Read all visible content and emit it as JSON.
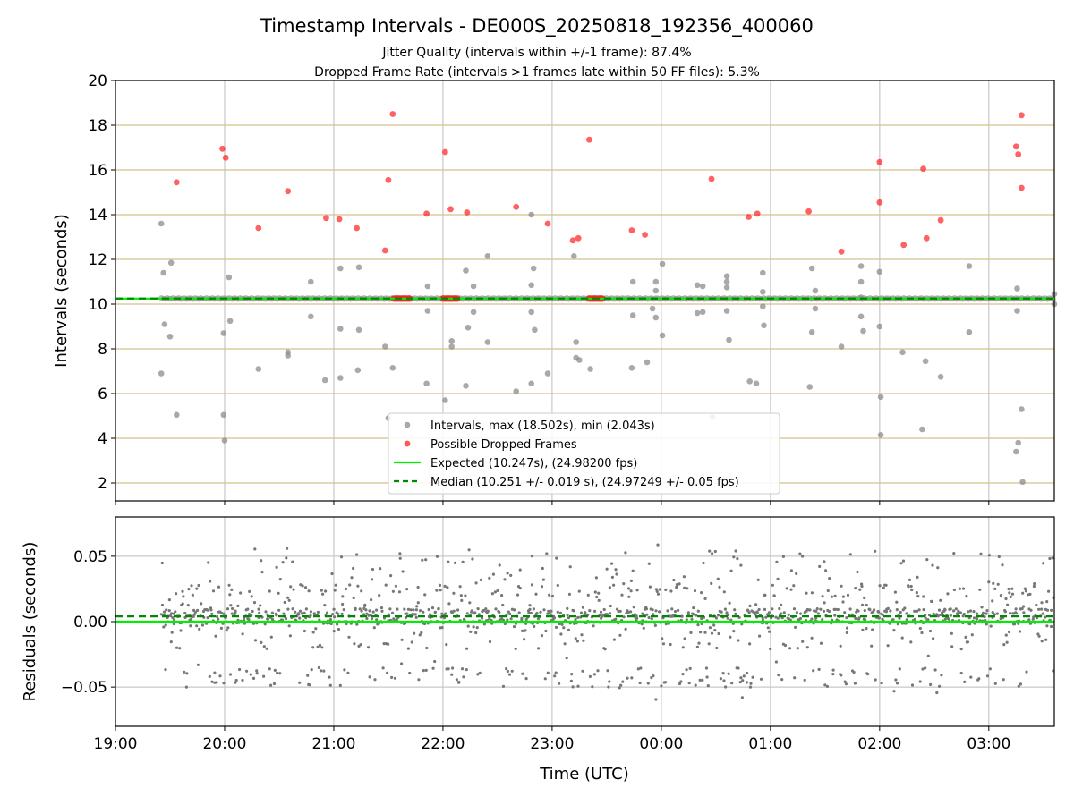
{
  "chart_data": [
    {
      "type": "scatter",
      "title": "Timestamp Intervals - DE000S_20250818_192356_400060",
      "subtitle_1": "Jitter Quality (intervals within +/-1 frame): 87.4%",
      "subtitle_2": "Dropped Frame Rate (intervals >1 frames late within 50 FF files): 5.3%",
      "ylabel": "Intervals (seconds)",
      "xlabel": "",
      "ylim": [
        1.2,
        20
      ],
      "yticks": [
        2,
        4,
        6,
        8,
        10,
        12,
        14,
        16,
        18,
        20
      ],
      "ytick_labels": [
        "2",
        "4",
        "6",
        "8",
        "10",
        "12",
        "14",
        "16",
        "18",
        "20"
      ],
      "xlim_hours": [
        19.0,
        27.6
      ],
      "grid": "vertical grey at each hour, horizontal tan at each y tick",
      "legend_position": "lower-center",
      "series": [
        {
          "name": "Intervals, max (18.502s), min (2.043s)",
          "color": "#8c8c8c",
          "points": [
            [
              19.42,
              13.6
            ],
            [
              19.42,
              6.9
            ],
            [
              19.44,
              11.4
            ],
            [
              19.45,
              9.1
            ],
            [
              19.5,
              8.55
            ],
            [
              19.51,
              11.85
            ],
            [
              19.56,
              5.05
            ],
            [
              19.99,
              8.7
            ],
            [
              19.99,
              5.05
            ],
            [
              20.0,
              3.9
            ],
            [
              20.04,
              11.2
            ],
            [
              20.05,
              9.25
            ],
            [
              20.31,
              7.1
            ],
            [
              20.58,
              7.85
            ],
            [
              20.58,
              7.7
            ],
            [
              20.79,
              11.0
            ],
            [
              20.79,
              9.45
            ],
            [
              20.92,
              6.6
            ],
            [
              21.06,
              11.6
            ],
            [
              21.06,
              8.9
            ],
            [
              21.06,
              6.7
            ],
            [
              21.23,
              11.65
            ],
            [
              21.23,
              8.85
            ],
            [
              21.22,
              7.05
            ],
            [
              21.47,
              8.1
            ],
            [
              21.5,
              4.9
            ],
            [
              21.54,
              7.15
            ],
            [
              21.86,
              10.8
            ],
            [
              21.86,
              9.7
            ],
            [
              21.85,
              6.45
            ],
            [
              22.02,
              5.7
            ],
            [
              22.08,
              8.35
            ],
            [
              22.08,
              8.1
            ],
            [
              22.21,
              11.5
            ],
            [
              22.23,
              8.95
            ],
            [
              22.21,
              6.35
            ],
            [
              22.28,
              10.8
            ],
            [
              22.28,
              9.65
            ],
            [
              22.41,
              12.15
            ],
            [
              22.41,
              8.3
            ],
            [
              22.67,
              6.1
            ],
            [
              22.81,
              14.0
            ],
            [
              22.81,
              10.85
            ],
            [
              22.81,
              9.65
            ],
            [
              22.81,
              6.45
            ],
            [
              22.83,
              11.6
            ],
            [
              22.84,
              8.85
            ],
            [
              22.96,
              6.9
            ],
            [
              23.2,
              12.15
            ],
            [
              23.22,
              8.3
            ],
            [
              23.22,
              7.6
            ],
            [
              23.25,
              7.5
            ],
            [
              23.35,
              7.1
            ],
            [
              23.74,
              11.0
            ],
            [
              23.74,
              9.5
            ],
            [
              23.73,
              7.15
            ],
            [
              23.87,
              7.4
            ],
            [
              23.92,
              9.8
            ],
            [
              23.95,
              11.0
            ],
            [
              23.95,
              10.6
            ],
            [
              23.95,
              9.4
            ],
            [
              24.01,
              11.8
            ],
            [
              24.01,
              8.6
            ],
            [
              24.33,
              10.85
            ],
            [
              24.33,
              9.6
            ],
            [
              24.38,
              10.8
            ],
            [
              24.38,
              9.65
            ],
            [
              24.47,
              4.95
            ],
            [
              24.6,
              11.25
            ],
            [
              24.6,
              11.0
            ],
            [
              24.6,
              10.75
            ],
            [
              24.6,
              9.7
            ],
            [
              24.62,
              8.4
            ],
            [
              24.81,
              6.55
            ],
            [
              24.87,
              6.45
            ],
            [
              24.93,
              11.4
            ],
            [
              24.93,
              10.55
            ],
            [
              24.93,
              9.9
            ],
            [
              24.94,
              9.05
            ],
            [
              25.36,
              6.3
            ],
            [
              25.38,
              11.6
            ],
            [
              25.41,
              10.6
            ],
            [
              25.41,
              9.8
            ],
            [
              25.38,
              8.75
            ],
            [
              25.65,
              8.1
            ],
            [
              25.83,
              11.7
            ],
            [
              25.83,
              11.0
            ],
            [
              25.83,
              10.3
            ],
            [
              25.83,
              9.45
            ],
            [
              25.85,
              8.8
            ],
            [
              26.0,
              11.45
            ],
            [
              26.0,
              9.0
            ],
            [
              26.01,
              5.85
            ],
            [
              26.01,
              4.15
            ],
            [
              26.21,
              7.85
            ],
            [
              26.39,
              4.4
            ],
            [
              26.42,
              7.45
            ],
            [
              26.56,
              6.75
            ],
            [
              26.82,
              11.7
            ],
            [
              26.82,
              8.75
            ],
            [
              27.26,
              10.7
            ],
            [
              27.26,
              9.7
            ],
            [
              27.27,
              3.8
            ],
            [
              27.25,
              3.4
            ],
            [
              27.3,
              5.3
            ],
            [
              27.31,
              2.05
            ],
            [
              27.6,
              10.45
            ],
            [
              27.6,
              10.0
            ]
          ]
        },
        {
          "name": "Possible Dropped Frames",
          "color": "#ff2020",
          "points": [
            [
              19.56,
              15.45
            ],
            [
              19.98,
              16.95
            ],
            [
              20.01,
              16.55
            ],
            [
              20.31,
              13.4
            ],
            [
              20.58,
              15.05
            ],
            [
              20.93,
              13.85
            ],
            [
              21.05,
              13.8
            ],
            [
              21.21,
              13.4
            ],
            [
              21.47,
              12.4
            ],
            [
              21.5,
              15.55
            ],
            [
              21.54,
              18.5
            ],
            [
              21.85,
              14.05
            ],
            [
              22.02,
              16.8
            ],
            [
              22.07,
              14.25
            ],
            [
              22.22,
              14.1
            ],
            [
              22.67,
              14.35
            ],
            [
              22.96,
              13.6
            ],
            [
              23.19,
              12.85
            ],
            [
              23.24,
              12.95
            ],
            [
              23.34,
              17.35
            ],
            [
              23.73,
              13.3
            ],
            [
              23.85,
              13.1
            ],
            [
              24.46,
              15.6
            ],
            [
              24.8,
              13.9
            ],
            [
              24.88,
              14.05
            ],
            [
              25.35,
              14.15
            ],
            [
              25.65,
              12.35
            ],
            [
              26.0,
              16.35
            ],
            [
              26.0,
              14.55
            ],
            [
              26.22,
              12.65
            ],
            [
              26.4,
              16.05
            ],
            [
              26.43,
              12.95
            ],
            [
              26.56,
              13.75
            ],
            [
              27.25,
              17.05
            ],
            [
              27.27,
              16.7
            ],
            [
              27.3,
              18.45
            ],
            [
              27.3,
              15.2
            ]
          ],
          "clusters_at_10_25": [
            [
              21.55,
              21.7
            ],
            [
              22.0,
              22.14
            ],
            [
              23.34,
              23.47
            ]
          ]
        },
        {
          "name": "Expected (10.247s), (24.98200 fps)",
          "color": "#00ee00",
          "y": 10.247,
          "line_style": "solid"
        },
        {
          "name": "Median (10.251 +/- 0.019 s), (24.97249 +/- 0.05 fps)",
          "color": "#008800",
          "y": 10.251,
          "line_style": "dashed"
        }
      ]
    },
    {
      "type": "scatter",
      "ylabel": "Residuals (seconds)",
      "xlabel": "Time (UTC)",
      "ylim": [
        -0.08,
        0.08
      ],
      "yticks": [
        0.05,
        0.0,
        -0.05
      ],
      "ytick_labels": [
        "0.05",
        "0.00",
        "−0.05"
      ],
      "xlim_hours": [
        19.0,
        27.6
      ],
      "xtick_labels": [
        "19:00",
        "20:00",
        "21:00",
        "22:00",
        "23:00",
        "00:00",
        "01:00",
        "02:00",
        "03:00"
      ],
      "xtick_hours": [
        19,
        20,
        21,
        22,
        23,
        24,
        25,
        26,
        27
      ],
      "grid": "vertical and horizontal grey",
      "series": [
        {
          "name": "",
          "color": "#777777",
          "description_range": [
            19.42,
            27.6
          ],
          "distribution": "dense band near +0.005 with spread to about +/-0.05",
          "point_count": 1400
        },
        {
          "name": "",
          "color": "#00ee00",
          "y": 0.0,
          "line_style": "solid"
        },
        {
          "name": "",
          "color": "#008800",
          "y": 0.004,
          "line_style": "dashed"
        }
      ]
    }
  ]
}
